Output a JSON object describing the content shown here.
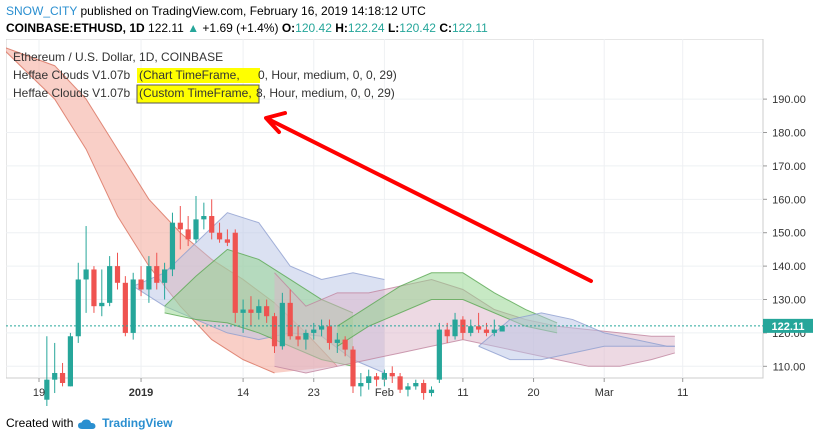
{
  "header": {
    "author": "SNOW_CITY",
    "published_text": "published on TradingView.com, February 16, 2019 14:18:12 UTC",
    "symbol": "COINBASE:ETHUSD, 1D",
    "last": "122.11",
    "change_arrow": "▲",
    "change": "+1.69 (+1.4%)",
    "open_label": "O:",
    "open": "120.42",
    "high_label": "H:",
    "high": "122.24",
    "low_label": "L:",
    "low": "120.42",
    "close_label": "C:",
    "close": "122.11"
  },
  "legend": {
    "title": "Ethereum / U.S. Dollar, 1D, COINBASE",
    "indicators": [
      {
        "name": "Heffae Clouds V1.07b",
        "highlight": "(Chart TimeFrame,",
        "rest": " 0, Hour, medium, 0, 0, 29)"
      },
      {
        "name": "Heffae Clouds V1.07b",
        "highlight": "(Custom TimeFrame,",
        "rest": " 8, Hour, medium, 0, 0, 29)"
      }
    ]
  },
  "price_badge": "122.11",
  "footer": {
    "created_with": "Created with",
    "brand": "TradingView"
  },
  "colors": {
    "up": "#26a69a",
    "down": "#ef5350",
    "highlight": "#ffff00",
    "arrow": "#ff0000",
    "cloud_red": "#f3a08f",
    "cloud_green": "#8fd48a",
    "cloud_blue": "#b7c3e6",
    "cloud_pink": "#dcb3c8",
    "author": "#2a8fd0"
  },
  "chart_data": {
    "type": "candlestick",
    "title": "Ethereum / U.S. Dollar, 1D, COINBASE",
    "y_ticks": [
      "110.00",
      "120.00",
      "130.00",
      "140.00",
      "150.00",
      "160.00",
      "170.00",
      "180.00",
      "190.00"
    ],
    "ylim": [
      106.5,
      208
    ],
    "x_ticks": [
      {
        "label": "19",
        "date": "2018-12-19"
      },
      {
        "label": "2019",
        "date": "2019-01-01"
      },
      {
        "label": "14",
        "date": "2019-01-14"
      },
      {
        "label": "23",
        "date": "2019-01-23"
      },
      {
        "label": "Feb",
        "date": "2019-02-01"
      },
      {
        "label": "11",
        "date": "2019-02-11"
      },
      {
        "label": "20",
        "date": "2019-02-20"
      },
      {
        "label": "Mar",
        "date": "2019-03-01"
      },
      {
        "label": "11",
        "date": "2019-03-11"
      }
    ],
    "candles": [
      {
        "date": "2018-12-20",
        "o": 100,
        "h": 119,
        "l": 98,
        "c": 106
      },
      {
        "date": "2018-12-21",
        "o": 106,
        "h": 117,
        "l": 102,
        "c": 108
      },
      {
        "date": "2018-12-22",
        "o": 108,
        "h": 111,
        "l": 104,
        "c": 105
      },
      {
        "date": "2018-12-23",
        "o": 104,
        "h": 120,
        "l": 104,
        "c": 119
      },
      {
        "date": "2018-12-24",
        "o": 119,
        "h": 141,
        "l": 117,
        "c": 136
      },
      {
        "date": "2018-12-25",
        "o": 136,
        "h": 152,
        "l": 126,
        "c": 139
      },
      {
        "date": "2018-12-26",
        "o": 139,
        "h": 140,
        "l": 126,
        "c": 128
      },
      {
        "date": "2018-12-27",
        "o": 128,
        "h": 139,
        "l": 125,
        "c": 129
      },
      {
        "date": "2018-12-28",
        "o": 129,
        "h": 143,
        "l": 128,
        "c": 140
      },
      {
        "date": "2018-12-29",
        "o": 140,
        "h": 144,
        "l": 133,
        "c": 135
      },
      {
        "date": "2018-12-30",
        "o": 135,
        "h": 137,
        "l": 119,
        "c": 120
      },
      {
        "date": "2018-12-31",
        "o": 120,
        "h": 138,
        "l": 118,
        "c": 136
      },
      {
        "date": "2019-01-01",
        "o": 136,
        "h": 140,
        "l": 131,
        "c": 133
      },
      {
        "date": "2019-01-02",
        "o": 133,
        "h": 143,
        "l": 129,
        "c": 140
      },
      {
        "date": "2019-01-03",
        "o": 140,
        "h": 144,
        "l": 133,
        "c": 135
      },
      {
        "date": "2019-01-04",
        "o": 135,
        "h": 141,
        "l": 130,
        "c": 139
      },
      {
        "date": "2019-01-05",
        "o": 139,
        "h": 156,
        "l": 137,
        "c": 153
      },
      {
        "date": "2019-01-06",
        "o": 153,
        "h": 158,
        "l": 145,
        "c": 151
      },
      {
        "date": "2019-01-07",
        "o": 151,
        "h": 155,
        "l": 146,
        "c": 148
      },
      {
        "date": "2019-01-08",
        "o": 148,
        "h": 161,
        "l": 147,
        "c": 154
      },
      {
        "date": "2019-01-09",
        "o": 154,
        "h": 159,
        "l": 151,
        "c": 155
      },
      {
        "date": "2019-01-10",
        "o": 155,
        "h": 160,
        "l": 148,
        "c": 150
      },
      {
        "date": "2019-01-11",
        "o": 150,
        "h": 153,
        "l": 147,
        "c": 148
      },
      {
        "date": "2019-01-12",
        "o": 148,
        "h": 151,
        "l": 146,
        "c": 147
      },
      {
        "date": "2019-01-13",
        "o": 150,
        "h": 151,
        "l": 123,
        "c": 126
      },
      {
        "date": "2019-01-14",
        "o": 126,
        "h": 130,
        "l": 120,
        "c": 127
      },
      {
        "date": "2019-01-15",
        "o": 127,
        "h": 131,
        "l": 122,
        "c": 126
      },
      {
        "date": "2019-01-16",
        "o": 126,
        "h": 130,
        "l": 124,
        "c": 128
      },
      {
        "date": "2019-01-17",
        "o": 128,
        "h": 130,
        "l": 123,
        "c": 125
      },
      {
        "date": "2019-01-18",
        "o": 125,
        "h": 126,
        "l": 114,
        "c": 116
      },
      {
        "date": "2019-01-19",
        "o": 116,
        "h": 132,
        "l": 115,
        "c": 129
      },
      {
        "date": "2019-01-20",
        "o": 129,
        "h": 133,
        "l": 118,
        "c": 119
      },
      {
        "date": "2019-01-21",
        "o": 119,
        "h": 122,
        "l": 116,
        "c": 118
      },
      {
        "date": "2019-01-22",
        "o": 118,
        "h": 121,
        "l": 115,
        "c": 120
      },
      {
        "date": "2019-01-23",
        "o": 120,
        "h": 123,
        "l": 118,
        "c": 121
      },
      {
        "date": "2019-01-24",
        "o": 121,
        "h": 124,
        "l": 119,
        "c": 122
      },
      {
        "date": "2019-01-25",
        "o": 122,
        "h": 124,
        "l": 115,
        "c": 117
      },
      {
        "date": "2019-01-26",
        "o": 117,
        "h": 120,
        "l": 114,
        "c": 118
      },
      {
        "date": "2019-01-27",
        "o": 118,
        "h": 119,
        "l": 113,
        "c": 115
      },
      {
        "date": "2019-01-28",
        "o": 115,
        "h": 116,
        "l": 102,
        "c": 104
      },
      {
        "date": "2019-01-29",
        "o": 104,
        "h": 108,
        "l": 101,
        "c": 105
      },
      {
        "date": "2019-01-30",
        "o": 105,
        "h": 109,
        "l": 103,
        "c": 107
      },
      {
        "date": "2019-01-31",
        "o": 107,
        "h": 108,
        "l": 104,
        "c": 106
      },
      {
        "date": "2019-02-01",
        "o": 106,
        "h": 109,
        "l": 104,
        "c": 108
      },
      {
        "date": "2019-02-02",
        "o": 108,
        "h": 110,
        "l": 105,
        "c": 107
      },
      {
        "date": "2019-02-03",
        "o": 107,
        "h": 108,
        "l": 102,
        "c": 103
      },
      {
        "date": "2019-02-04",
        "o": 103,
        "h": 105,
        "l": 101,
        "c": 104
      },
      {
        "date": "2019-02-05",
        "o": 104,
        "h": 106,
        "l": 103,
        "c": 105
      },
      {
        "date": "2019-02-06",
        "o": 105,
        "h": 106,
        "l": 100,
        "c": 102
      },
      {
        "date": "2019-02-07",
        "o": 102,
        "h": 104,
        "l": 101,
        "c": 103
      },
      {
        "date": "2019-02-08",
        "o": 106,
        "h": 123,
        "l": 105,
        "c": 121
      },
      {
        "date": "2019-02-09",
        "o": 121,
        "h": 123,
        "l": 117,
        "c": 119
      },
      {
        "date": "2019-02-10",
        "o": 119,
        "h": 126,
        "l": 118,
        "c": 124
      },
      {
        "date": "2019-02-11",
        "o": 124,
        "h": 125,
        "l": 118,
        "c": 120
      },
      {
        "date": "2019-02-12",
        "o": 120,
        "h": 124,
        "l": 119,
        "c": 122
      },
      {
        "date": "2019-02-13",
        "o": 122,
        "h": 126,
        "l": 120,
        "c": 121
      },
      {
        "date": "2019-02-14",
        "o": 121,
        "h": 123,
        "l": 119,
        "c": 120
      },
      {
        "date": "2019-02-15",
        "o": 120,
        "h": 124,
        "l": 119,
        "c": 121
      },
      {
        "date": "2019-02-16",
        "o": 120.42,
        "h": 122.24,
        "l": 120.42,
        "c": 122.11
      }
    ],
    "clouds": [
      {
        "color": "red",
        "upper": [
          [
            -5,
            206
          ],
          [
            2,
            200
          ],
          [
            6,
            190
          ],
          [
            10,
            175
          ],
          [
            14,
            160
          ],
          [
            18,
            150
          ],
          [
            22,
            142
          ],
          [
            26,
            136
          ],
          [
            30,
            129
          ],
          [
            34,
            120
          ],
          [
            38,
            110
          ]
        ],
        "lower": [
          [
            -5,
            206
          ],
          [
            2,
            190
          ],
          [
            6,
            175
          ],
          [
            10,
            155
          ],
          [
            14,
            140
          ],
          [
            18,
            128
          ],
          [
            22,
            118
          ],
          [
            26,
            112
          ],
          [
            30,
            108
          ]
        ]
      },
      {
        "color": "blue",
        "upper": [
          [
            12,
            134
          ],
          [
            16,
            138
          ],
          [
            20,
            147
          ],
          [
            24,
            156
          ],
          [
            28,
            153
          ],
          [
            32,
            140
          ],
          [
            36,
            136
          ],
          [
            40,
            138
          ],
          [
            44,
            136
          ]
        ],
        "lower": [
          [
            12,
            134
          ],
          [
            16,
            128
          ],
          [
            20,
            124
          ],
          [
            24,
            120
          ],
          [
            28,
            118
          ],
          [
            32,
            120
          ],
          [
            36,
            119
          ],
          [
            40,
            112
          ],
          [
            44,
            108
          ]
        ]
      },
      {
        "color": "green",
        "upper": [
          [
            16,
            128
          ],
          [
            20,
            137
          ],
          [
            24,
            145
          ],
          [
            28,
            142
          ],
          [
            32,
            136
          ],
          [
            36,
            130
          ],
          [
            40,
            126
          ]
        ],
        "lower": [
          [
            16,
            126
          ],
          [
            20,
            124
          ],
          [
            24,
            123
          ],
          [
            28,
            120
          ],
          [
            32,
            116
          ],
          [
            36,
            112
          ],
          [
            40,
            110
          ]
        ]
      },
      {
        "color": "pink",
        "upper": [
          [
            30,
            138
          ],
          [
            34,
            128
          ],
          [
            38,
            132
          ],
          [
            42,
            132
          ],
          [
            46,
            134
          ],
          [
            50,
            136
          ],
          [
            54,
            133
          ],
          [
            58,
            127
          ],
          [
            62,
            124
          ],
          [
            66,
            122
          ],
          [
            70,
            121
          ],
          [
            74,
            120
          ],
          [
            78,
            119
          ],
          [
            81,
            119
          ]
        ],
        "lower": [
          [
            30,
            110
          ],
          [
            34,
            108
          ],
          [
            38,
            110
          ],
          [
            42,
            112
          ],
          [
            46,
            114
          ],
          [
            50,
            116
          ],
          [
            54,
            118
          ],
          [
            58,
            116
          ],
          [
            62,
            114
          ],
          [
            66,
            112
          ],
          [
            70,
            110
          ],
          [
            74,
            110
          ],
          [
            78,
            112
          ],
          [
            81,
            114
          ]
        ]
      },
      {
        "color": "green",
        "upper": [
          [
            38,
            122
          ],
          [
            42,
            128
          ],
          [
            46,
            134
          ],
          [
            50,
            138
          ],
          [
            54,
            138
          ],
          [
            58,
            132
          ],
          [
            62,
            127
          ],
          [
            66,
            123
          ]
        ],
        "lower": [
          [
            38,
            116
          ],
          [
            42,
            122
          ],
          [
            46,
            126
          ],
          [
            50,
            130
          ],
          [
            54,
            130
          ],
          [
            58,
            126
          ],
          [
            62,
            122
          ],
          [
            66,
            120
          ]
        ]
      },
      {
        "color": "blue",
        "upper": [
          [
            56,
            116
          ],
          [
            60,
            124
          ],
          [
            64,
            126
          ],
          [
            68,
            124
          ],
          [
            72,
            120
          ],
          [
            76,
            118
          ],
          [
            80,
            116
          ],
          [
            81,
            116
          ]
        ],
        "lower": [
          [
            56,
            116
          ],
          [
            60,
            112
          ],
          [
            64,
            112
          ],
          [
            68,
            114
          ],
          [
            72,
            116
          ],
          [
            76,
            116
          ],
          [
            80,
            116
          ],
          [
            81,
            116
          ]
        ]
      }
    ],
    "last_price": 122.11
  }
}
